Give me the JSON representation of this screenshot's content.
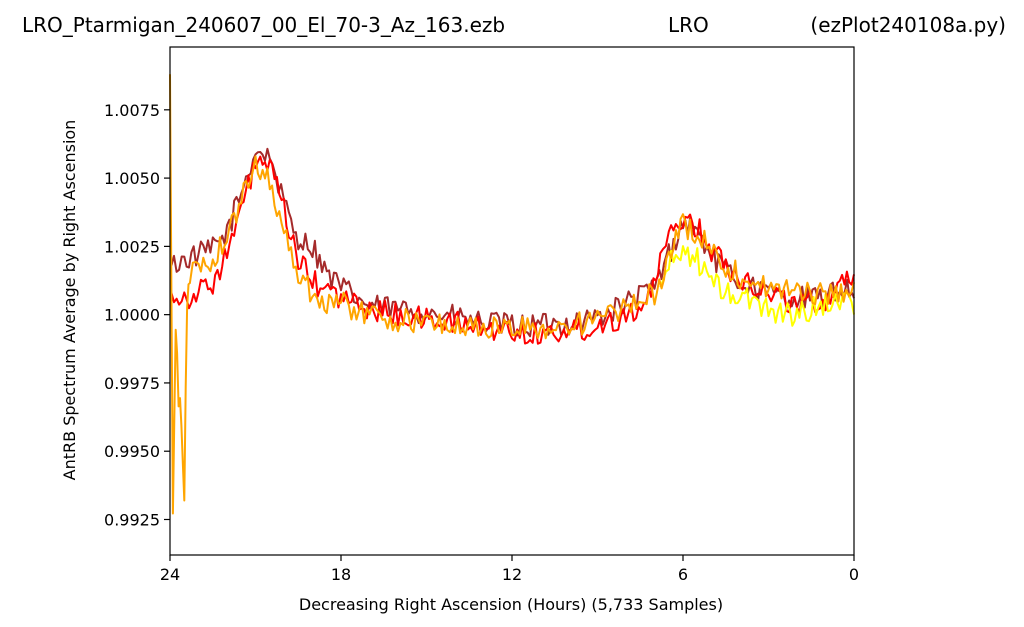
{
  "header": {
    "title_left": "LRO_Ptarmigan_240607_00_El_70-3_Az_163.ezb",
    "title_center": "LRO",
    "title_right": "(ezPlot240108a.py)"
  },
  "chart_data": {
    "type": "line",
    "xlabel": "Decreasing Right Ascension (Hours) (5,733 Samples)",
    "ylabel": "AntRB Spectrum Average by Right Ascension",
    "xlim": [
      24,
      0
    ],
    "ylim": [
      0.9912,
      1.0098
    ],
    "x_ticks": [
      "24",
      "18",
      "12",
      "6",
      "0"
    ],
    "x_tick_values": [
      24,
      18,
      12,
      6,
      0
    ],
    "y_ticks": [
      "0.9925",
      "0.9950",
      "0.9975",
      "1.0000",
      "1.0025",
      "1.0050",
      "1.0075"
    ],
    "y_tick_values": [
      0.9925,
      0.995,
      0.9975,
      1.0,
      1.0025,
      1.005,
      1.0075
    ],
    "grid": false,
    "legend": "none",
    "series": [
      {
        "color": "#a52a2a",
        "x": [
          23.95,
          23.5,
          23.0,
          22.5,
          22.0,
          21.5,
          21.0,
          20.5,
          20.3,
          20.0,
          19.5,
          19.0,
          18.5,
          18.0,
          17.0,
          16.0,
          15.0,
          14.0,
          13.0,
          12.0,
          11.0,
          10.0,
          9.0,
          8.0,
          7.0,
          6.5,
          6.0,
          5.5,
          5.0,
          4.5,
          4.0,
          3.0,
          2.0,
          1.0,
          0.4,
          0.0
        ],
        "y": [
          1.0018,
          1.002,
          1.0022,
          1.0024,
          1.003,
          1.0045,
          1.006,
          1.0058,
          1.0052,
          1.004,
          1.0028,
          1.0025,
          1.0015,
          1.001,
          1.0003,
          1.0002,
          1.0001,
          0.9999,
          0.9997,
          0.9996,
          0.9996,
          0.9997,
          0.9999,
          1.0004,
          1.001,
          1.0022,
          1.0034,
          1.003,
          1.0022,
          1.0016,
          1.0012,
          1.0008,
          1.0006,
          1.0006,
          1.001,
          1.0008
        ]
      },
      {
        "color": "#ff0000",
        "x": [
          23.95,
          23.5,
          23.0,
          22.5,
          22.0,
          21.5,
          21.0,
          20.5,
          20.0,
          19.5,
          19.0,
          18.0,
          17.0,
          16.0,
          15.0,
          14.0,
          13.0,
          12.0,
          11.0,
          10.0,
          9.0,
          8.0,
          7.2,
          6.8,
          6.5,
          6.0,
          5.5,
          5.0,
          4.5,
          4.0,
          3.0,
          2.0,
          1.0,
          0.5,
          0.0
        ],
        "y": [
          1.0008,
          1.0006,
          1.0008,
          1.0012,
          1.0022,
          1.0038,
          1.0056,
          1.0054,
          1.0038,
          1.002,
          1.0012,
          1.0006,
          1.0002,
          1.0,
          0.9998,
          0.9997,
          0.9995,
          0.9994,
          0.9993,
          0.9994,
          0.9996,
          1.0,
          1.0006,
          1.0018,
          1.0028,
          1.0036,
          1.0032,
          1.0024,
          1.0018,
          1.0014,
          1.0008,
          1.0004,
          1.0005,
          1.0012,
          1.0015
        ]
      },
      {
        "color": "#ffff00",
        "x": [
          6.8,
          6.5,
          6.0,
          5.5,
          5.0,
          4.5,
          4.0,
          3.5,
          3.0,
          2.5,
          2.0,
          1.5,
          1.0,
          0.5,
          0.0
        ],
        "y": [
          1.001,
          1.0018,
          1.0024,
          1.002,
          1.0012,
          1.0008,
          1.0006,
          1.0005,
          1.0002,
          1.0001,
          1.0,
          1.0002,
          1.0004,
          1.0006,
          1.0004
        ]
      },
      {
        "color": "#ffa500",
        "x": [
          24.0,
          23.9,
          23.8,
          23.7,
          23.6,
          23.5,
          23.4,
          23.3,
          23.0,
          22.5,
          22.0,
          21.5,
          21.0,
          20.5,
          20.0,
          19.5,
          19.0,
          18.5,
          18.0,
          17.0,
          16.0,
          15.0,
          14.0,
          13.0,
          12.0,
          11.0,
          10.0,
          9.0,
          8.0,
          7.0,
          6.5,
          6.0,
          5.5,
          5.0,
          4.5,
          4.0,
          3.0,
          2.0,
          1.0,
          0.0
        ],
        "y": [
          1.0088,
          0.9925,
          0.9998,
          0.997,
          0.996,
          0.9935,
          1.0005,
          1.0015,
          1.0018,
          1.002,
          1.0028,
          1.0042,
          1.0055,
          1.005,
          1.003,
          1.0015,
          1.0008,
          1.0005,
          1.0004,
          1.0,
          0.9998,
          0.9997,
          0.9996,
          0.9995,
          0.9995,
          0.9995,
          0.9996,
          0.9998,
          1.0002,
          1.0008,
          1.002,
          1.0033,
          1.003,
          1.0024,
          1.0018,
          1.0014,
          1.001,
          1.0008,
          1.0008,
          1.0008
        ]
      }
    ]
  }
}
